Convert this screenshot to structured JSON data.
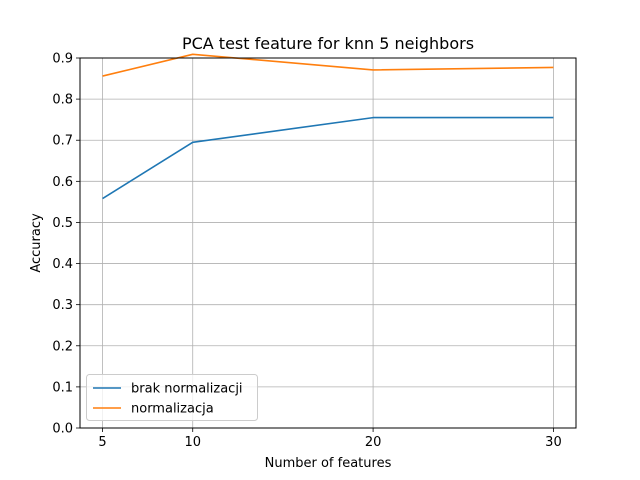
{
  "chart_data": {
    "type": "line",
    "title": "PCA test feature for knn 5 neighbors",
    "xlabel": "Number of features",
    "ylabel": "Accuracy",
    "x": [
      5,
      10,
      20,
      30
    ],
    "xticks": [
      5,
      10,
      20,
      30
    ],
    "yticks": [
      0.0,
      0.1,
      0.2,
      0.3,
      0.4,
      0.5,
      0.6,
      0.7,
      0.8,
      0.9
    ],
    "xlim": [
      3.75,
      31.25
    ],
    "ylim": [
      0.0,
      0.9
    ],
    "grid": true,
    "legend_position": "lower-left",
    "series": [
      {
        "name": "brak normalizacji",
        "color": "#1f77b4",
        "values": [
          0.558,
          0.695,
          0.755,
          0.755
        ]
      },
      {
        "name": "normalizacja",
        "color": "#ff7f0e",
        "values": [
          0.856,
          0.909,
          0.871,
          0.877
        ]
      }
    ]
  }
}
